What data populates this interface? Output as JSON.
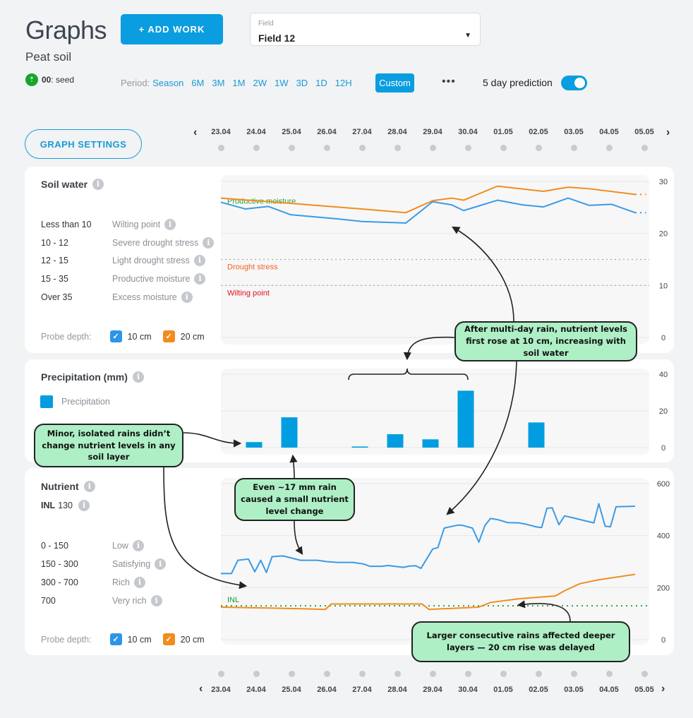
{
  "header": {
    "title": "Graphs",
    "add_work": "+ ADD WORK",
    "field_label": "Field",
    "field_value": "Field 12",
    "soil": "Peat soil",
    "stage_code": "00",
    "stage_name": ": seed",
    "period_label": "Period:",
    "periods": [
      "Season",
      "6M",
      "3M",
      "1M",
      "2W",
      "1W",
      "3D",
      "1D",
      "12H"
    ],
    "custom": "Custom",
    "more": "•••",
    "prediction_label": "5 day prediction",
    "prediction_on": true,
    "graph_settings": "GRAPH SETTINGS"
  },
  "dates": [
    "23.04",
    "24.04",
    "25.04",
    "26.04",
    "27.04",
    "28.04",
    "29.04",
    "30.04",
    "01.05",
    "02.05",
    "03.05",
    "04.05",
    "05.05"
  ],
  "colors": {
    "accent": "#0a9de0",
    "depth10": "#3a9be6",
    "depth20": "#f28c1c",
    "precip": "#009ee0",
    "inl": "#1a9a2a"
  },
  "soil_water": {
    "title": "Soil water",
    "ranges": [
      {
        "range": "Less than 10",
        "label": "Wilting point"
      },
      {
        "range": "10 - 12",
        "label": "Severe drought stress"
      },
      {
        "range": "12 - 15",
        "label": "Light drought stress"
      },
      {
        "range": "15 - 35",
        "label": "Productive moisture"
      },
      {
        "range": "Over 35",
        "label": "Excess moisture"
      }
    ],
    "probe_label": "Probe depth:",
    "probe_10": "10 cm",
    "probe_20": "20 cm"
  },
  "precipitation": {
    "title": "Precipitation (mm)",
    "legend": "Precipitation"
  },
  "nutrient": {
    "title": "Nutrient",
    "inl_label": "INL",
    "inl_value": "130",
    "ranges": [
      {
        "range": "0 - 150",
        "label": "Low"
      },
      {
        "range": "150 - 300",
        "label": "Satisfying"
      },
      {
        "range": "300 - 700",
        "label": "Rich"
      },
      {
        "range": "700",
        "label": "Very rich"
      }
    ],
    "probe_label": "Probe depth:",
    "probe_10": "10 cm",
    "probe_20": "20 cm"
  },
  "chart_data": [
    {
      "type": "line",
      "title": "Soil water",
      "ylim": [
        0,
        30
      ],
      "yticks": [
        0,
        10,
        20,
        30
      ],
      "x_unit": "day index from 23.04",
      "reference_lines": [
        {
          "label": "Drought stress",
          "value": 15,
          "color": "#f0641e"
        },
        {
          "label": "Wilting point",
          "value": 10,
          "color": "#e0101a"
        }
      ],
      "zone_label": "Productive moisture",
      "series": [
        {
          "name": "10 cm",
          "color": "#3a9be6",
          "points": [
            [
              0,
              26
            ],
            [
              0.7,
              24.7
            ],
            [
              1.34,
              25.2
            ],
            [
              1.98,
              23.6
            ],
            [
              3.3,
              22.8
            ],
            [
              4,
              22.3
            ],
            [
              5.24,
              22
            ],
            [
              6,
              26.1
            ],
            [
              6.54,
              25.5
            ],
            [
              6.88,
              24.4
            ],
            [
              7.84,
              26.4
            ],
            [
              8.54,
              25.5
            ],
            [
              9.14,
              25.1
            ],
            [
              9.84,
              26.8
            ],
            [
              10.44,
              25.4
            ],
            [
              11.08,
              25.6
            ],
            [
              11.74,
              24
            ]
          ],
          "prediction": [
            [
              11.74,
              24
            ],
            [
              12.05,
              24
            ]
          ]
        },
        {
          "name": "20 cm",
          "color": "#f28c1c",
          "points": [
            [
              0,
              26.8
            ],
            [
              1.98,
              25.8
            ],
            [
              4,
              24.7
            ],
            [
              5.24,
              24
            ],
            [
              6,
              26.3
            ],
            [
              6.54,
              26.8
            ],
            [
              6.88,
              26.4
            ],
            [
              7.84,
              29.1
            ],
            [
              9.14,
              28.1
            ],
            [
              9.84,
              28.9
            ],
            [
              10.44,
              28.6
            ],
            [
              11.74,
              27.5
            ]
          ],
          "prediction": [
            [
              11.74,
              27.5
            ],
            [
              12.05,
              27.5
            ]
          ]
        }
      ]
    },
    {
      "type": "bar",
      "title": "Precipitation (mm)",
      "ylim": [
        0,
        40
      ],
      "yticks": [
        0,
        20,
        40
      ],
      "categories": [
        "24.04",
        "25.04",
        "27.04",
        "28.04",
        "29.04",
        "30.04",
        "02.05"
      ],
      "index": [
        1,
        2,
        4,
        5,
        6,
        7,
        9
      ],
      "values": [
        3,
        16.5,
        0.6,
        7.3,
        4.5,
        31,
        13.7
      ]
    },
    {
      "type": "line",
      "title": "Nutrient",
      "ylim": [
        0,
        600
      ],
      "yticks": [
        0,
        200,
        400,
        600
      ],
      "reference_lines": [
        {
          "label": "INL",
          "value": 130,
          "color": "#1a9a2a"
        }
      ],
      "series": [
        {
          "name": "10 cm",
          "color": "#3a9be6",
          "points": [
            [
              0,
              254
            ],
            [
              0.3,
              254
            ],
            [
              0.48,
              305
            ],
            [
              0.78,
              310
            ],
            [
              0.96,
              261
            ],
            [
              1.13,
              305
            ],
            [
              1.29,
              258
            ],
            [
              1.45,
              319
            ],
            [
              1.76,
              322
            ],
            [
              2.26,
              305
            ],
            [
              2.74,
              305
            ],
            [
              3,
              300
            ],
            [
              3.3,
              297
            ],
            [
              3.74,
              297
            ],
            [
              4.04,
              291
            ],
            [
              4.22,
              282
            ],
            [
              4.57,
              282
            ],
            [
              4.74,
              285
            ],
            [
              5.17,
              278
            ],
            [
              5.35,
              283
            ],
            [
              5.52,
              284
            ],
            [
              5.67,
              274
            ],
            [
              6,
              348
            ],
            [
              6.15,
              354
            ],
            [
              6.33,
              429
            ],
            [
              6.7,
              440
            ],
            [
              6.83,
              440
            ],
            [
              7.13,
              429
            ],
            [
              7.31,
              375
            ],
            [
              7.48,
              438
            ],
            [
              7.64,
              466
            ],
            [
              7.83,
              462
            ],
            [
              8.13,
              450
            ],
            [
              8.44,
              449
            ],
            [
              8.61,
              445
            ],
            [
              8.96,
              433
            ],
            [
              9.09,
              431
            ],
            [
              9.24,
              505
            ],
            [
              9.39,
              507
            ],
            [
              9.58,
              442
            ],
            [
              9.74,
              476
            ],
            [
              9.96,
              469
            ],
            [
              10.57,
              449
            ],
            [
              10.71,
              523
            ],
            [
              10.89,
              436
            ],
            [
              11.04,
              434
            ],
            [
              11.2,
              511
            ],
            [
              11.74,
              513
            ]
          ]
        },
        {
          "name": "20 cm",
          "color": "#f28c1c",
          "points": [
            [
              0,
              125
            ],
            [
              1.5,
              121
            ],
            [
              2.5,
              118
            ],
            [
              2.96,
              116
            ],
            [
              3.13,
              137
            ],
            [
              5.7,
              137
            ],
            [
              5.9,
              116
            ],
            [
              7.3,
              125
            ],
            [
              7.65,
              143
            ],
            [
              8.44,
              157
            ],
            [
              9.48,
              168
            ],
            [
              9.74,
              188
            ],
            [
              10.17,
              215
            ],
            [
              10.7,
              230
            ],
            [
              11.74,
              251
            ]
          ]
        }
      ]
    }
  ],
  "annotations": {
    "multi_day": "After multi-day rain, nutrient levels first rose at 10 cm, increasing with soil water",
    "minor": "Minor, isolated rains didn’t change nutrient levels in any soil layer",
    "seventeen": "Even ~17 mm rain caused a small nutrient level change",
    "deeper": "Larger consecutive rains affected deeper layers — 20 cm rise was delayed"
  }
}
